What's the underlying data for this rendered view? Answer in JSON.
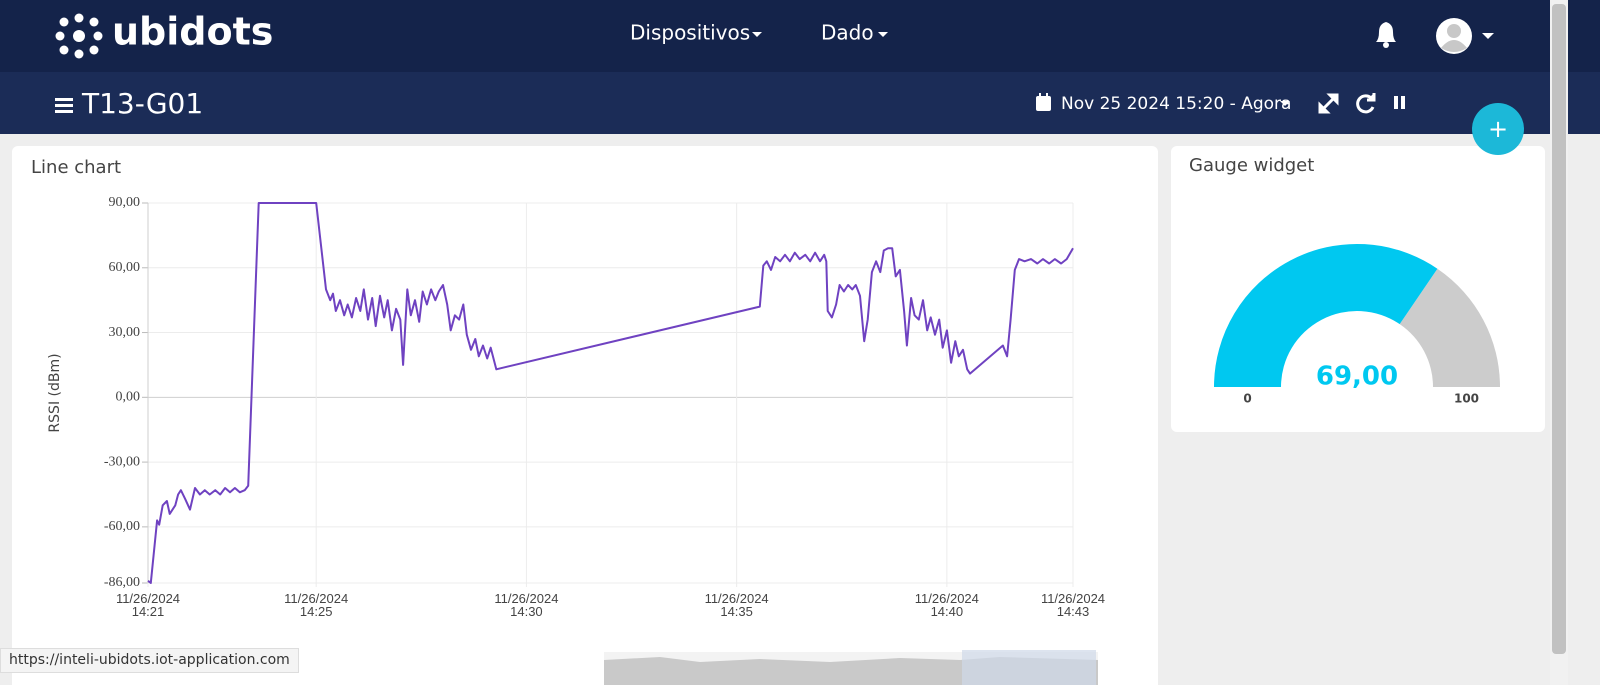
{
  "header": {
    "logo": "ubidots",
    "menu": [
      "Dispositivos",
      "Dado"
    ]
  },
  "toolbar": {
    "title": "T13-G01",
    "date_range": "Nov 25 2024 15:20 - Agora"
  },
  "chart_data": [
    {
      "type": "line",
      "title": "Line chart",
      "y_label": "RSSI (dBm)",
      "color": "#6f42c1",
      "grid": true,
      "x": [
        "2024-11-26 14:21:00",
        "2024-11-26 14:21:04",
        "2024-11-26 14:21:13",
        "2024-11-26 14:21:16",
        "2024-11-26 14:21:21",
        "2024-11-26 14:21:27",
        "2024-11-26 14:21:31",
        "2024-11-26 14:21:39",
        "2024-11-26 14:21:43",
        "2024-11-26 14:21:47",
        "2024-11-26 14:21:53",
        "2024-11-26 14:22:00",
        "2024-11-26 14:22:07",
        "2024-11-26 14:22:14",
        "2024-11-26 14:22:21",
        "2024-11-26 14:22:28",
        "2024-11-26 14:22:36",
        "2024-11-26 14:22:43",
        "2024-11-26 14:22:50",
        "2024-11-26 14:22:57",
        "2024-11-26 14:23:04",
        "2024-11-26 14:23:11",
        "2024-11-26 14:23:18",
        "2024-11-26 14:23:23",
        "2024-11-26 14:23:38",
        "2024-11-26 14:25:00",
        "2024-11-26 14:25:14",
        "2024-11-26 14:25:20",
        "2024-11-26 14:25:24",
        "2024-11-26 14:25:28",
        "2024-11-26 14:25:34",
        "2024-11-26 14:25:40",
        "2024-11-26 14:25:45",
        "2024-11-26 14:25:51",
        "2024-11-26 14:25:57",
        "2024-11-26 14:26:03",
        "2024-11-26 14:26:08",
        "2024-11-26 14:26:14",
        "2024-11-26 14:26:20",
        "2024-11-26 14:26:25",
        "2024-11-26 14:26:31",
        "2024-11-26 14:26:37",
        "2024-11-26 14:26:42",
        "2024-11-26 14:26:48",
        "2024-11-26 14:26:54",
        "2024-11-26 14:27:00",
        "2024-11-26 14:27:04",
        "2024-11-26 14:27:10",
        "2024-11-26 14:27:15",
        "2024-11-26 14:27:21",
        "2024-11-26 14:27:27",
        "2024-11-26 14:27:32",
        "2024-11-26 14:27:38",
        "2024-11-26 14:27:44",
        "2024-11-26 14:27:50",
        "2024-11-26 14:27:55",
        "2024-11-26 14:28:01",
        "2024-11-26 14:28:07",
        "2024-11-26 14:28:12",
        "2024-11-26 14:28:18",
        "2024-11-26 14:28:24",
        "2024-11-26 14:28:30",
        "2024-11-26 14:28:35",
        "2024-11-26 14:28:41",
        "2024-11-26 14:28:47",
        "2024-11-26 14:28:52",
        "2024-11-26 14:28:58",
        "2024-11-26 14:29:04",
        "2024-11-26 14:29:09",
        "2024-11-26 14:29:17",
        "2024-11-26 14:35:33",
        "2024-11-26 14:35:38",
        "2024-11-26 14:35:43",
        "2024-11-26 14:35:49",
        "2024-11-26 14:35:55",
        "2024-11-26 14:36:02",
        "2024-11-26 14:36:09",
        "2024-11-26 14:36:16",
        "2024-11-26 14:36:23",
        "2024-11-26 14:36:30",
        "2024-11-26 14:36:38",
        "2024-11-26 14:36:45",
        "2024-11-26 14:36:52",
        "2024-11-26 14:36:59",
        "2024-11-26 14:37:05",
        "2024-11-26 14:37:08",
        "2024-11-26 14:37:10",
        "2024-11-26 14:37:16",
        "2024-11-26 14:37:22",
        "2024-11-26 14:37:27",
        "2024-11-26 14:37:33",
        "2024-11-26 14:37:39",
        "2024-11-26 14:37:45",
        "2024-11-26 14:37:50",
        "2024-11-26 14:37:56",
        "2024-11-26 14:38:02",
        "2024-11-26 14:38:07",
        "2024-11-26 14:38:13",
        "2024-11-26 14:38:19",
        "2024-11-26 14:38:25",
        "2024-11-26 14:38:30",
        "2024-11-26 14:38:36",
        "2024-11-26 14:38:42",
        "2024-11-26 14:38:47",
        "2024-11-26 14:38:53",
        "2024-11-26 14:38:59",
        "2024-11-26 14:39:03",
        "2024-11-26 14:39:09",
        "2024-11-26 14:39:14",
        "2024-11-26 14:39:20",
        "2024-11-26 14:39:26",
        "2024-11-26 14:39:32",
        "2024-11-26 14:39:37",
        "2024-11-26 14:39:43",
        "2024-11-26 14:39:49",
        "2024-11-26 14:39:54",
        "2024-11-26 14:40:00",
        "2024-11-26 14:40:06",
        "2024-11-26 14:40:12",
        "2024-11-26 14:40:17",
        "2024-11-26 14:40:23",
        "2024-11-26 14:40:29",
        "2024-11-26 14:40:33",
        "2024-11-26 14:41:20",
        "2024-11-26 14:41:26",
        "2024-11-26 14:41:31",
        "2024-11-26 14:41:37",
        "2024-11-26 14:41:43",
        "2024-11-26 14:41:51",
        "2024-11-26 14:42:00",
        "2024-11-26 14:42:09",
        "2024-11-26 14:42:17",
        "2024-11-26 14:42:26",
        "2024-11-26 14:42:34",
        "2024-11-26 14:42:43",
        "2024-11-26 14:42:51",
        "2024-11-26 14:43:00"
      ],
      "values": [
        -85,
        -86,
        -57,
        -59,
        -50,
        -48,
        -54,
        -50,
        -45,
        -43,
        -47,
        -52,
        -42,
        -45,
        -43,
        -45,
        -43,
        -45,
        -42,
        -44,
        -42,
        -44,
        -43,
        -41,
        90,
        90,
        50,
        45,
        48,
        40,
        45,
        38,
        43,
        37,
        46,
        40,
        50,
        36,
        46,
        33,
        47,
        37,
        45,
        31,
        41,
        36,
        15,
        50,
        38,
        45,
        35,
        49,
        43,
        50,
        45,
        49,
        52,
        43,
        31,
        38,
        36,
        43,
        29,
        22,
        27,
        19,
        24,
        18,
        23,
        13,
        42,
        61,
        63,
        59,
        65,
        63,
        66,
        63,
        67,
        64,
        66,
        63,
        67,
        63,
        66,
        63,
        40,
        37,
        43,
        52,
        49,
        52,
        50,
        52,
        47,
        26,
        36,
        58,
        63,
        58,
        68,
        69,
        69,
        56,
        59,
        40,
        24,
        46,
        38,
        36,
        45,
        31,
        37,
        29,
        36,
        23,
        31,
        16,
        26,
        19,
        22,
        13,
        11,
        24,
        19,
        36,
        59,
        64,
        63,
        64,
        62,
        64,
        62,
        64,
        62,
        64,
        69
      ],
      "xlim": [
        "2024-11-26 14:21:00",
        "2024-11-26 14:43:00"
      ],
      "xticks": [
        {
          "value": "2024-11-26 14:21:00",
          "label": "11/26/2024 14:21"
        },
        {
          "value": "2024-11-26 14:25:00",
          "label": "11/26/2024 14:25"
        },
        {
          "value": "2024-11-26 14:30:00",
          "label": "11/26/2024 14:30"
        },
        {
          "value": "2024-11-26 14:35:00",
          "label": "11/26/2024 14:35"
        },
        {
          "value": "2024-11-26 14:40:00",
          "label": "11/26/2024 14:40"
        },
        {
          "value": "2024-11-26 14:43:00",
          "label": "11/26/2024 14:43"
        }
      ],
      "ylim": [
        -86,
        90
      ],
      "yticks": [
        {
          "value": 90,
          "label": "90,00"
        },
        {
          "value": 60,
          "label": "60,00"
        },
        {
          "value": 30,
          "label": "30,00"
        },
        {
          "value": 0,
          "label": "0,00"
        },
        {
          "value": -30,
          "label": "-30,00"
        },
        {
          "value": -60,
          "label": "-60,00"
        },
        {
          "value": -86,
          "label": "-86,00"
        }
      ]
    },
    {
      "type": "gauge",
      "title": "Gauge widget",
      "values": [
        69
      ],
      "value_labels": [
        "69,00"
      ],
      "ylim": [
        0,
        100
      ],
      "yticks": [
        0,
        100
      ],
      "color": "#00c8f0",
      "track_color": "#cccccc"
    }
  ],
  "status_bar": "https://inteli-ubidots.iot-application.com"
}
